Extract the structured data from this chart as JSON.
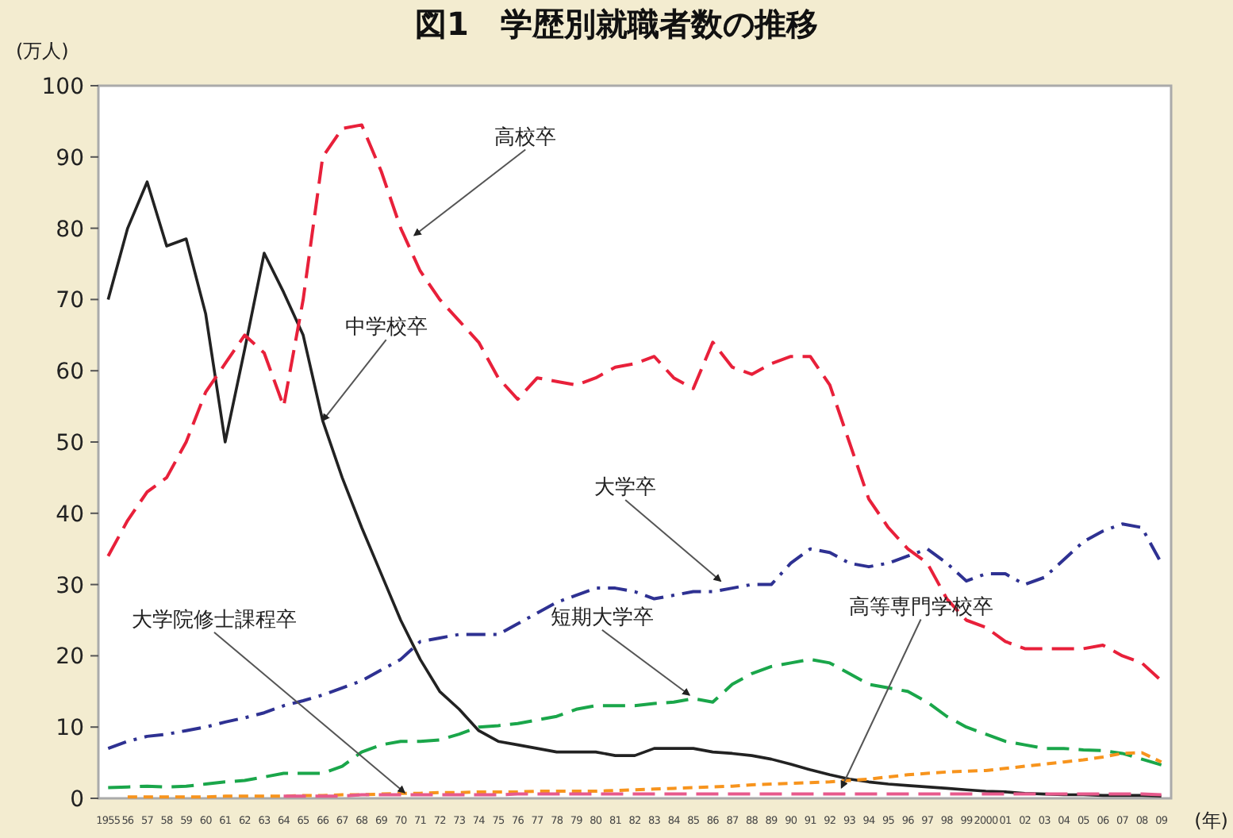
{
  "chart_data": {
    "type": "line",
    "title": "図1　学歴別就職者数の推移",
    "ylabel": "(万人)",
    "xlabel": "(年)",
    "xlim": [
      1954.5,
      2009.5
    ],
    "ylim": [
      0,
      100
    ],
    "yticks": [
      0,
      10,
      20,
      30,
      40,
      50,
      60,
      70,
      80,
      90,
      100
    ],
    "xticks": [
      {
        "value": 1955,
        "label": "1955"
      },
      {
        "value": 1956,
        "label": "56"
      },
      {
        "value": 1957,
        "label": "57"
      },
      {
        "value": 1958,
        "label": "58"
      },
      {
        "value": 1959,
        "label": "59"
      },
      {
        "value": 1960,
        "label": "60"
      },
      {
        "value": 1961,
        "label": "61"
      },
      {
        "value": 1962,
        "label": "62"
      },
      {
        "value": 1963,
        "label": "63"
      },
      {
        "value": 1964,
        "label": "64"
      },
      {
        "value": 1965,
        "label": "65"
      },
      {
        "value": 1966,
        "label": "66"
      },
      {
        "value": 1967,
        "label": "67"
      },
      {
        "value": 1968,
        "label": "68"
      },
      {
        "value": 1969,
        "label": "69"
      },
      {
        "value": 1970,
        "label": "70"
      },
      {
        "value": 1971,
        "label": "71"
      },
      {
        "value": 1972,
        "label": "72"
      },
      {
        "value": 1973,
        "label": "73"
      },
      {
        "value": 1974,
        "label": "74"
      },
      {
        "value": 1975,
        "label": "75"
      },
      {
        "value": 1976,
        "label": "76"
      },
      {
        "value": 1977,
        "label": "77"
      },
      {
        "value": 1978,
        "label": "78"
      },
      {
        "value": 1979,
        "label": "79"
      },
      {
        "value": 1980,
        "label": "80"
      },
      {
        "value": 1981,
        "label": "81"
      },
      {
        "value": 1982,
        "label": "82"
      },
      {
        "value": 1983,
        "label": "83"
      },
      {
        "value": 1984,
        "label": "84"
      },
      {
        "value": 1985,
        "label": "85"
      },
      {
        "value": 1986,
        "label": "86"
      },
      {
        "value": 1987,
        "label": "87"
      },
      {
        "value": 1988,
        "label": "88"
      },
      {
        "value": 1989,
        "label": "89"
      },
      {
        "value": 1990,
        "label": "90"
      },
      {
        "value": 1991,
        "label": "91"
      },
      {
        "value": 1992,
        "label": "92"
      },
      {
        "value": 1993,
        "label": "93"
      },
      {
        "value": 1994,
        "label": "94"
      },
      {
        "value": 1995,
        "label": "95"
      },
      {
        "value": 1996,
        "label": "96"
      },
      {
        "value": 1997,
        "label": "97"
      },
      {
        "value": 1998,
        "label": "98"
      },
      {
        "value": 1999,
        "label": "99"
      },
      {
        "value": 2000,
        "label": "2000"
      },
      {
        "value": 2001,
        "label": "01"
      },
      {
        "value": 2002,
        "label": "02"
      },
      {
        "value": 2003,
        "label": "03"
      },
      {
        "value": 2004,
        "label": "04"
      },
      {
        "value": 2005,
        "label": "05"
      },
      {
        "value": 2006,
        "label": "06"
      },
      {
        "value": 2007,
        "label": "07"
      },
      {
        "value": 2008,
        "label": "08"
      },
      {
        "value": 2009,
        "label": "09"
      }
    ],
    "x": [
      1955,
      1956,
      1957,
      1958,
      1959,
      1960,
      1961,
      1962,
      1963,
      1964,
      1965,
      1966,
      1967,
      1968,
      1969,
      1970,
      1971,
      1972,
      1973,
      1974,
      1975,
      1976,
      1977,
      1978,
      1979,
      1980,
      1981,
      1982,
      1983,
      1984,
      1985,
      1986,
      1987,
      1988,
      1989,
      1990,
      1991,
      1992,
      1993,
      1994,
      1995,
      1996,
      1997,
      1998,
      1999,
      2000,
      2001,
      2002,
      2003,
      2004,
      2005,
      2006,
      2007,
      2008,
      2009
    ],
    "series": [
      {
        "color": "#222222",
        "line_style": "solid",
        "values": [
          70,
          80,
          86.5,
          77.5,
          78.5,
          68,
          50,
          63,
          76.5,
          71,
          65,
          53,
          45,
          38,
          31.5,
          25,
          19.5,
          15,
          12.5,
          9.5,
          8,
          7.5,
          7,
          6.5,
          6.5,
          6.5,
          6,
          6,
          7,
          7,
          7,
          6.5,
          6.3,
          6,
          5.5,
          4.8,
          4,
          3.3,
          2.7,
          2.3,
          2,
          1.8,
          1.6,
          1.4,
          1.2,
          1,
          0.9,
          0.7,
          0.6,
          0.5,
          0.5,
          0.4,
          0.4,
          0.4,
          0.3
        ]
      },
      {
        "color": "#e8203a",
        "line_style": "dashed",
        "values": [
          34,
          39,
          43,
          45,
          50,
          57,
          61,
          65,
          62.5,
          55,
          70,
          90,
          94,
          94.5,
          88,
          80,
          74,
          70,
          67,
          64,
          59,
          56,
          59,
          58.5,
          58,
          59,
          60.5,
          61,
          62,
          59,
          57.5,
          64,
          60.5,
          59.5,
          61,
          62,
          62,
          58,
          50,
          42,
          38,
          35,
          33,
          28,
          25,
          24,
          22,
          21,
          21,
          21,
          21,
          21.5,
          20,
          19,
          16.5
        ]
      },
      {
        "color": "#2e3192",
        "line_style": "dashdot",
        "values": [
          7,
          8,
          8.7,
          9,
          9.5,
          10,
          10.7,
          11.3,
          12,
          13,
          13.7,
          14.5,
          15.5,
          16.5,
          18,
          19.5,
          22,
          22.5,
          23,
          23,
          23,
          24.5,
          26,
          27.5,
          28.5,
          29.5,
          29.5,
          29,
          28,
          28.5,
          29,
          29,
          29.5,
          30,
          30,
          33,
          35,
          34.5,
          33,
          32.5,
          33,
          34,
          35,
          33,
          30.5,
          31.5,
          31.5,
          30,
          31,
          33.5,
          36,
          37.5,
          38.5,
          38,
          33
        ]
      },
      {
        "color": "#1aa64a",
        "line_style": "dashed",
        "values": [
          1.5,
          1.6,
          1.7,
          1.6,
          1.7,
          2,
          2.3,
          2.5,
          3,
          3.5,
          3.5,
          3.5,
          4.5,
          6.5,
          7.5,
          8,
          8,
          8.2,
          9,
          10,
          10.2,
          10.5,
          11,
          11.5,
          12.5,
          13,
          13,
          13,
          13.3,
          13.5,
          14,
          13.5,
          16,
          17.5,
          18.5,
          19,
          19.5,
          19,
          17.5,
          16,
          15.5,
          15,
          13.5,
          11.5,
          10,
          9,
          8,
          7.5,
          7,
          7,
          6.8,
          6.7,
          6.3,
          5.5,
          4.7
        ]
      },
      {
        "color": "#f7941d",
        "line_style": "dotted",
        "values": [
          null,
          0.2,
          0.2,
          0.2,
          0.2,
          0.2,
          0.3,
          0.3,
          0.3,
          0.3,
          0.4,
          0.4,
          0.5,
          0.5,
          0.6,
          0.7,
          0.7,
          0.8,
          0.8,
          0.9,
          0.9,
          0.9,
          1,
          1,
          1,
          1,
          1.1,
          1.2,
          1.3,
          1.4,
          1.5,
          1.6,
          1.7,
          1.9,
          2,
          2.1,
          2.2,
          2.3,
          2.5,
          2.7,
          3,
          3.3,
          3.5,
          3.7,
          3.8,
          3.9,
          4.2,
          4.5,
          4.8,
          5.1,
          5.4,
          5.8,
          6.3,
          6.4,
          5.1
        ]
      },
      {
        "color": "#e75a8c",
        "line_style": "dashed",
        "values": [
          null,
          null,
          null,
          null,
          null,
          null,
          null,
          null,
          null,
          0.3,
          0.3,
          0.3,
          0.3,
          0.5,
          0.5,
          0.5,
          0.5,
          0.5,
          0.5,
          0.5,
          0.5,
          0.6,
          0.6,
          0.6,
          0.6,
          0.6,
          0.6,
          0.6,
          0.6,
          0.6,
          0.6,
          0.6,
          0.6,
          0.6,
          0.6,
          0.6,
          0.6,
          0.6,
          0.6,
          0.6,
          0.6,
          0.6,
          0.6,
          0.6,
          0.6,
          0.6,
          0.6,
          0.6,
          0.6,
          0.6,
          0.6,
          0.6,
          0.6,
          0.6,
          0.5
        ]
      }
    ],
    "annotations": [
      {
        "text": "高校卒",
        "x": 1970.7,
        "y": 79
      },
      {
        "text": "中学校卒",
        "x": 1966,
        "y": 53
      },
      {
        "text": "大学卒",
        "x": 1986.4,
        "y": 30.5
      },
      {
        "text": "短期大学卒",
        "x": 1984.8,
        "y": 14.5
      },
      {
        "text": "大学院修士課程卒",
        "x": 1970.2,
        "y": 0.8
      },
      {
        "text": "高等専門学校卒",
        "x": 1992.6,
        "y": 1.5
      }
    ]
  }
}
